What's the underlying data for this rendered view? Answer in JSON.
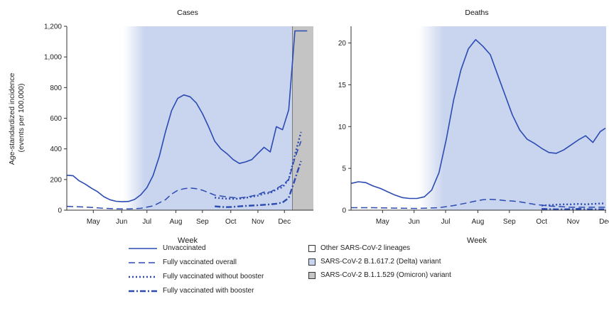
{
  "colors": {
    "line": "#2b4bb3",
    "delta_band": "#c9d4ee",
    "omicron_band": "#c4c4c4",
    "other_band": "#ffffff",
    "axis": "#333333"
  },
  "chart_data": [
    {
      "type": "line",
      "title": "Cases",
      "ylabel": "Age-standardized incidence (events per 100,000)",
      "xlabel": "Week",
      "xlim": [
        0,
        40
      ],
      "ylim": [
        0,
        1200
      ],
      "yticks": [
        0,
        200,
        400,
        600,
        800,
        1000,
        1200
      ],
      "ytick_labels": [
        "0",
        "200",
        "400",
        "600",
        "800",
        "1,000",
        "1,200"
      ],
      "xticks": [
        {
          "label": "May",
          "x": 4.3
        },
        {
          "label": "Jun",
          "x": 8.9
        },
        {
          "label": "Jul",
          "x": 13.0
        },
        {
          "label": "Aug",
          "x": 17.7
        },
        {
          "label": "Sep",
          "x": 22.0
        },
        {
          "label": "Oct",
          "x": 26.6
        },
        {
          "label": "Nov",
          "x": 31.0
        },
        {
          "label": "Dec",
          "x": 35.3
        }
      ],
      "variant_periods": [
        {
          "variant": "Other SARS-CoV-2 lineages",
          "start": 0,
          "end": 9.3,
          "fade_end": 12.6
        },
        {
          "variant": "SARS-CoV-2 B.1.617.2 (Delta) variant",
          "start": 9.3,
          "end": 36.6
        },
        {
          "variant": "SARS-CoV-2 B.1.1.529 (Omicron) variant",
          "start": 36.6,
          "end": 40
        }
      ],
      "series": [
        {
          "name": "Unvaccinated",
          "style": "solid",
          "x": [
            0,
            1,
            2,
            3,
            4,
            5,
            6,
            7,
            8,
            9,
            10,
            11,
            12,
            13,
            14,
            15,
            16,
            17,
            18,
            19,
            20,
            21,
            22,
            23,
            24,
            25,
            26,
            27,
            28,
            29,
            30,
            31,
            32,
            33,
            34,
            35,
            36,
            37,
            38,
            39
          ],
          "y": [
            228,
            225,
            192,
            170,
            143,
            120,
            88,
            68,
            58,
            55,
            57,
            70,
            100,
            148,
            226,
            350,
            510,
            650,
            730,
            752,
            740,
            700,
            630,
            545,
            450,
            400,
            368,
            330,
            305,
            315,
            330,
            370,
            410,
            380,
            545,
            525,
            655,
            1170,
            1170,
            1170
          ]
        },
        {
          "name": "Fully vaccinated overall",
          "style": "dashed",
          "x": [
            0,
            2,
            4,
            6,
            8,
            10,
            12,
            14,
            16,
            17,
            18,
            19,
            20,
            21,
            22,
            23,
            24,
            25,
            26,
            27,
            28,
            29,
            30,
            31,
            32,
            33,
            34,
            35,
            36,
            37,
            38
          ],
          "y": [
            25,
            22,
            18,
            12,
            9,
            8,
            12,
            28,
            68,
            105,
            130,
            140,
            145,
            140,
            130,
            115,
            98,
            92,
            87,
            82,
            80,
            85,
            92,
            102,
            118,
            118,
            140,
            165,
            200,
            340,
            450
          ]
        },
        {
          "name": "Fully vaccinated without booster",
          "style": "dotted",
          "x": [
            24,
            25,
            26,
            27,
            28,
            29,
            30,
            31,
            32,
            33,
            34,
            35,
            36,
            37,
            38
          ],
          "y": [
            82,
            78,
            75,
            74,
            75,
            80,
            88,
            95,
            108,
            112,
            135,
            150,
            200,
            360,
            510
          ]
        },
        {
          "name": "Fully vaccinated with booster",
          "style": "dashdot",
          "x": [
            24,
            25,
            26,
            27,
            28,
            29,
            30,
            31,
            32,
            33,
            34,
            35,
            36,
            37,
            38
          ],
          "y": [
            25,
            22,
            20,
            22,
            25,
            28,
            30,
            32,
            35,
            38,
            42,
            50,
            80,
            200,
            320
          ]
        }
      ]
    },
    {
      "type": "line",
      "title": "Deaths",
      "xlabel": "Week",
      "xlim": [
        0,
        34.8
      ],
      "ylim": [
        0,
        22
      ],
      "yticks": [
        0,
        5,
        10,
        15,
        20
      ],
      "ytick_labels": [
        "0",
        "5",
        "10",
        "15",
        "20"
      ],
      "xticks": [
        {
          "label": "May",
          "x": 4.3
        },
        {
          "label": "Jun",
          "x": 8.6
        },
        {
          "label": "Jul",
          "x": 12.9
        },
        {
          "label": "Aug",
          "x": 17.3
        },
        {
          "label": "Sep",
          "x": 21.6
        },
        {
          "label": "Oct",
          "x": 26.0
        },
        {
          "label": "Nov",
          "x": 30.3
        },
        {
          "label": "Dec",
          "x": 34.7
        }
      ],
      "variant_periods": [
        {
          "variant": "Other SARS-CoV-2 lineages",
          "start": 0,
          "end": 9.3,
          "fade_end": 12.6
        },
        {
          "variant": "SARS-CoV-2 B.1.617.2 (Delta) variant",
          "start": 9.3,
          "end": 34.8
        }
      ],
      "series": [
        {
          "name": "Unvaccinated",
          "style": "solid",
          "x": [
            0,
            1,
            2,
            3,
            4,
            5,
            6,
            7,
            8,
            9,
            10,
            11,
            12,
            13,
            14,
            15,
            16,
            17,
            18,
            19,
            20,
            21,
            22,
            23,
            24,
            25,
            26,
            27,
            28,
            29,
            30,
            31,
            32,
            33,
            34,
            34.7
          ],
          "y": [
            3.2,
            3.4,
            3.3,
            2.9,
            2.6,
            2.2,
            1.8,
            1.5,
            1.4,
            1.4,
            1.6,
            2.4,
            4.5,
            8.5,
            13.2,
            16.8,
            19.3,
            20.4,
            19.6,
            18.6,
            16.2,
            13.8,
            11.4,
            9.6,
            8.5,
            8.0,
            7.4,
            6.9,
            6.8,
            7.2,
            7.8,
            8.4,
            8.9,
            8.1,
            9.4,
            9.8
          ]
        },
        {
          "name": "Fully vaccinated overall",
          "style": "dashed",
          "x": [
            0,
            3,
            6,
            9,
            12,
            14,
            16,
            17,
            18,
            19,
            20,
            21,
            22,
            23,
            24,
            25,
            26,
            27,
            28,
            29,
            30,
            31,
            32,
            33,
            34,
            34.7
          ],
          "y": [
            0.3,
            0.3,
            0.25,
            0.2,
            0.3,
            0.55,
            0.9,
            1.1,
            1.25,
            1.3,
            1.25,
            1.15,
            1.1,
            1.0,
            0.85,
            0.7,
            0.6,
            0.5,
            0.45,
            0.4,
            0.35,
            0.35,
            0.35,
            0.35,
            0.35,
            0.35
          ]
        },
        {
          "name": "Fully vaccinated without booster",
          "style": "dotted",
          "x": [
            26,
            27,
            28,
            29,
            30,
            31,
            32,
            33,
            34,
            34.7
          ],
          "y": [
            0.55,
            0.6,
            0.65,
            0.7,
            0.7,
            0.75,
            0.7,
            0.75,
            0.8,
            0.8
          ]
        },
        {
          "name": "Fully vaccinated with booster",
          "style": "dashdot",
          "x": [
            26,
            27,
            28,
            29,
            30,
            31,
            32,
            33,
            34,
            34.7
          ],
          "y": [
            0.15,
            0.12,
            0.1,
            0.1,
            0.12,
            0.15,
            0.12,
            0.1,
            0.1,
            0.1
          ]
        }
      ]
    }
  ],
  "legend": {
    "lines": [
      {
        "label": "Unvaccinated",
        "style": "solid"
      },
      {
        "label": "Fully vaccinated overall",
        "style": "dashed"
      },
      {
        "label": "Fully vaccinated without booster",
        "style": "dotted"
      },
      {
        "label": "Fully vaccinated with booster",
        "style": "dashdot"
      }
    ],
    "boxes": [
      {
        "label": "Other SARS-CoV-2 lineages",
        "fill": "#ffffff"
      },
      {
        "label": "SARS-CoV-2 B.1.617.2 (Delta) variant",
        "fill": "#c9d4ee"
      },
      {
        "label": "SARS-CoV-2 B.1.1.529 (Omicron) variant",
        "fill": "#c4c4c4"
      }
    ]
  }
}
